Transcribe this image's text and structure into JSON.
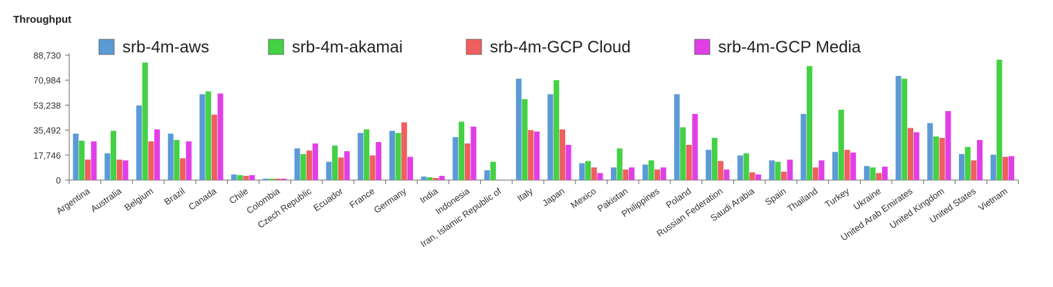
{
  "chart_title": "Throughput",
  "colors": {
    "srb-4m-aws": "#5b9bd5",
    "srb-4m-akamai": "#44d144",
    "srb-4m-GCP Cloud": "#ef5f5f",
    "srb-4m-GCP Media": "#e13fe6"
  },
  "chart_data": {
    "type": "bar",
    "title": "Throughput",
    "xlabel": "",
    "ylabel": "",
    "ylim": [
      0,
      88730
    ],
    "yticks": [
      0,
      17746,
      35492,
      53238,
      70984,
      88730
    ],
    "ytick_labels": [
      "0",
      "17,746",
      "35,492",
      "53,238",
      "70,984",
      "88,730"
    ],
    "grid": false,
    "legend_position": "top",
    "categories": [
      "Argentina",
      "Australia",
      "Belgium",
      "Brazil",
      "Canada",
      "Chile",
      "Colombia",
      "Czech Republic",
      "Ecuador",
      "France",
      "Germany",
      "India",
      "Indonesia",
      "Iran, Islamic Republic of",
      "Italy",
      "Japan",
      "Mexico",
      "Pakistan",
      "Philippines",
      "Poland",
      "Russian Federation",
      "Saudi Arabia",
      "Spain",
      "Thailand",
      "Turkey",
      "Ukraine",
      "United Arab Emirates",
      "United Kingdom",
      "United States",
      "Vietnam"
    ],
    "series": [
      {
        "name": "srb-4m-aws",
        "values": [
          33000,
          19000,
          53000,
          33000,
          61000,
          4000,
          1000,
          22500,
          13000,
          33500,
          35000,
          2500,
          30500,
          7000,
          72000,
          61000,
          12000,
          9000,
          11000,
          61000,
          21500,
          17500,
          14000,
          47000,
          20000,
          10000,
          74000,
          40500,
          18500,
          18000
        ]
      },
      {
        "name": "srb-4m-akamai",
        "values": [
          28000,
          35000,
          83500,
          28500,
          63000,
          3500,
          1000,
          18500,
          24500,
          36000,
          33500,
          2000,
          41500,
          13000,
          57500,
          71000,
          13500,
          22500,
          14000,
          37500,
          30000,
          19000,
          13000,
          81000,
          50000,
          9000,
          72000,
          31000,
          23500,
          85500
        ]
      },
      {
        "name": "srb-4m-GCP Cloud",
        "values": [
          14500,
          14500,
          27500,
          15500,
          46500,
          3000,
          1000,
          21000,
          16000,
          17500,
          41000,
          1500,
          26000,
          0,
          35500,
          36000,
          9000,
          7500,
          7500,
          25000,
          13500,
          5500,
          6000,
          9000,
          21500,
          5000,
          37000,
          30000,
          14000,
          16500
        ]
      },
      {
        "name": "srb-4m-GCP Media",
        "values": [
          27500,
          14000,
          36000,
          27500,
          61500,
          3500,
          1000,
          26000,
          20500,
          27000,
          16500,
          3000,
          38000,
          0,
          34500,
          25000,
          5000,
          9000,
          9000,
          47000,
          7500,
          4000,
          14500,
          14000,
          19500,
          9500,
          34000,
          49000,
          28500,
          17000
        ]
      }
    ]
  }
}
